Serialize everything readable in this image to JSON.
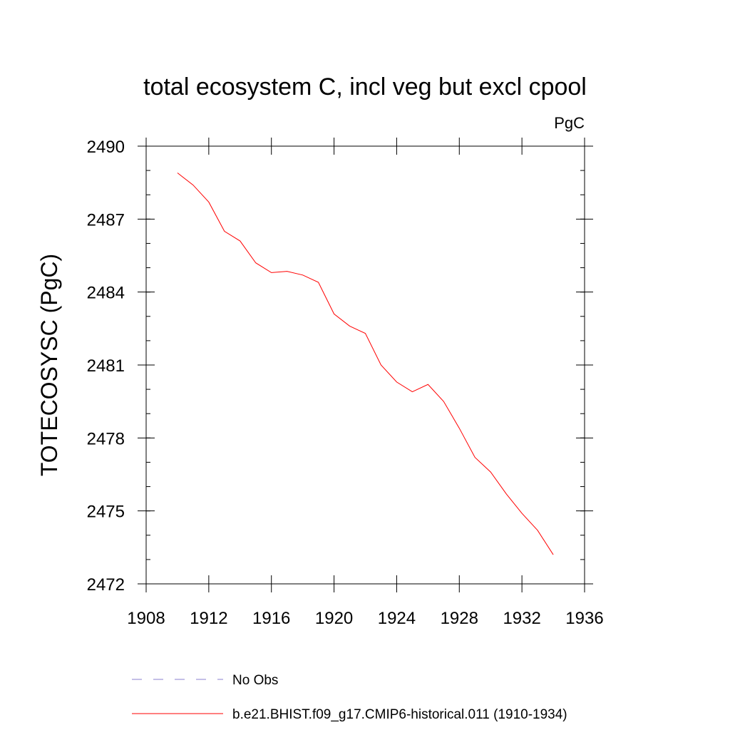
{
  "chart_data": {
    "type": "line",
    "title": "total ecosystem C, incl veg but excl cpool",
    "units": "PgC",
    "xlabel": "",
    "ylabel": "TOTECOSYSC  (PgC)",
    "xlim": [
      1908,
      1936
    ],
    "ylim": [
      2472,
      2490
    ],
    "x_ticks": [
      1908,
      1912,
      1916,
      1920,
      1924,
      1928,
      1932,
      1936
    ],
    "y_ticks": [
      2472,
      2475,
      2478,
      2481,
      2484,
      2487,
      2490
    ],
    "grid": false,
    "legend_position": "bottom",
    "series": [
      {
        "name": "b.e21.BHIST.f09_g17.CMIP6-historical.011 (1910-1934)",
        "color": "#ff0000",
        "style": "solid",
        "x": [
          1910,
          1911,
          1912,
          1913,
          1914,
          1915,
          1916,
          1917,
          1918,
          1919,
          1920,
          1921,
          1922,
          1923,
          1924,
          1925,
          1926,
          1927,
          1928,
          1929,
          1930,
          1931,
          1932,
          1933,
          1934
        ],
        "y": [
          2488.9,
          2488.4,
          2487.7,
          2486.5,
          2486.1,
          2485.2,
          2484.8,
          2484.85,
          2484.7,
          2484.4,
          2483.1,
          2482.6,
          2482.3,
          2481.0,
          2480.3,
          2479.9,
          2480.2,
          2479.5,
          2478.4,
          2477.2,
          2476.6,
          2475.7,
          2474.9,
          2474.2,
          2473.2
        ]
      }
    ],
    "legend": [
      {
        "label": "No Obs",
        "color": "#8a7fcf",
        "style": "dashed"
      },
      {
        "label": "b.e21.BHIST.f09_g17.CMIP6-historical.011 (1910-1934)",
        "color": "#ff0000",
        "style": "solid"
      }
    ]
  }
}
